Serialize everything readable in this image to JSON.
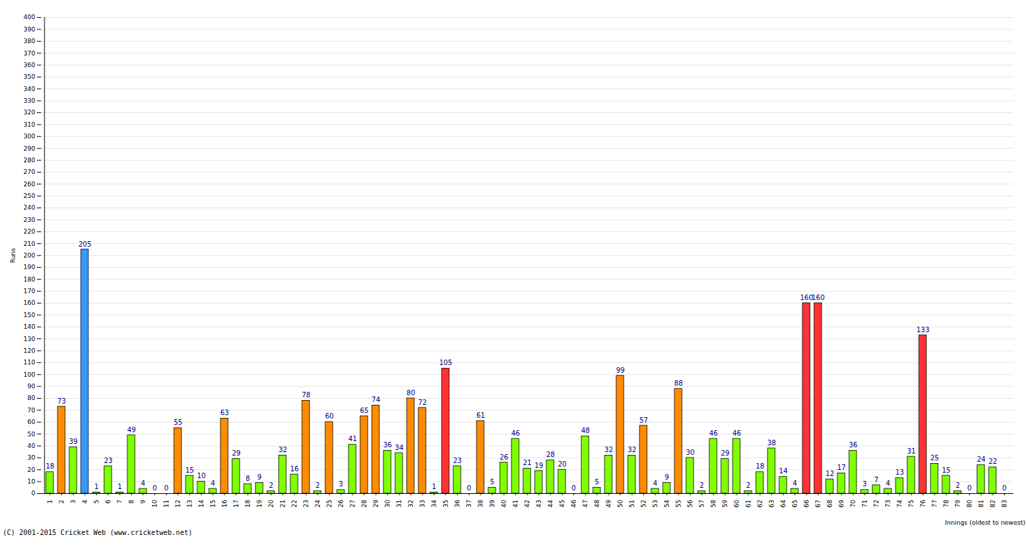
{
  "chart_data": {
    "type": "bar",
    "x_label": "Innings (oldest to newest)",
    "y_label": "Runs",
    "caption": "(C) 2001-2015 Cricket Web (www.cricketweb.net)",
    "categories": [
      "1",
      "2",
      "3",
      "4",
      "5",
      "6",
      "7",
      "8",
      "9",
      "10",
      "11",
      "12",
      "13",
      "14",
      "15",
      "16",
      "17",
      "18",
      "19",
      "20",
      "21",
      "22",
      "23",
      "24",
      "25",
      "26",
      "27",
      "28",
      "29",
      "30",
      "31",
      "32",
      "33",
      "34",
      "35",
      "36",
      "37",
      "38",
      "39",
      "40",
      "41",
      "42",
      "43",
      "44",
      "45",
      "46",
      "47",
      "48",
      "49",
      "50",
      "51",
      "52",
      "53",
      "54",
      "55",
      "56",
      "57",
      "58",
      "59",
      "60",
      "61",
      "62",
      "63",
      "64",
      "65",
      "66",
      "67",
      "68",
      "69",
      "70",
      "71",
      "72",
      "73",
      "74",
      "75",
      "76",
      "77",
      "78",
      "79",
      "80",
      "81",
      "82",
      "83"
    ],
    "values": [
      18,
      73,
      39,
      205,
      1,
      23,
      1,
      49,
      4,
      0,
      0,
      55,
      15,
      10,
      4,
      63,
      29,
      8,
      9,
      2,
      32,
      16,
      78,
      2,
      60,
      3,
      41,
      65,
      74,
      36,
      34,
      80,
      72,
      1,
      105,
      23,
      0,
      61,
      5,
      26,
      46,
      21,
      19,
      28,
      20,
      0,
      48,
      5,
      32,
      99,
      32,
      57,
      4,
      9,
      88,
      30,
      2,
      46,
      29,
      46,
      2,
      18,
      38,
      14,
      4,
      160,
      160,
      12,
      17,
      36,
      3,
      7,
      4,
      13,
      31,
      133,
      25,
      15,
      2,
      0,
      24,
      22,
      0
    ],
    "colors": [
      "#80ff00",
      "#ff8c00",
      "#80ff00",
      "#3399ff",
      "#80ff00",
      "#80ff00",
      "#80ff00",
      "#80ff00",
      "#80ff00",
      "#80ff00",
      "#80ff00",
      "#ff8c00",
      "#80ff00",
      "#80ff00",
      "#80ff00",
      "#ff8c00",
      "#80ff00",
      "#80ff00",
      "#80ff00",
      "#80ff00",
      "#80ff00",
      "#80ff00",
      "#ff8c00",
      "#80ff00",
      "#ff8c00",
      "#80ff00",
      "#80ff00",
      "#ff8c00",
      "#ff8c00",
      "#80ff00",
      "#80ff00",
      "#ff8c00",
      "#ff8c00",
      "#80ff00",
      "#ff3333",
      "#80ff00",
      "#80ff00",
      "#ff8c00",
      "#80ff00",
      "#80ff00",
      "#80ff00",
      "#80ff00",
      "#80ff00",
      "#80ff00",
      "#80ff00",
      "#80ff00",
      "#80ff00",
      "#80ff00",
      "#80ff00",
      "#ff8c00",
      "#80ff00",
      "#ff8c00",
      "#80ff00",
      "#80ff00",
      "#ff8c00",
      "#80ff00",
      "#80ff00",
      "#80ff00",
      "#80ff00",
      "#80ff00",
      "#80ff00",
      "#80ff00",
      "#80ff00",
      "#80ff00",
      "#80ff00",
      "#ff3333",
      "#ff3333",
      "#80ff00",
      "#80ff00",
      "#80ff00",
      "#80ff00",
      "#80ff00",
      "#80ff00",
      "#80ff00",
      "#80ff00",
      "#ff3333",
      "#80ff00",
      "#80ff00",
      "#80ff00",
      "#80ff00",
      "#80ff00",
      "#80ff00",
      "#80ff00"
    ],
    "ylim": [
      0,
      400
    ],
    "yticks": [
      0,
      10,
      20,
      30,
      40,
      50,
      60,
      70,
      80,
      90,
      100,
      110,
      120,
      130,
      140,
      150,
      160,
      170,
      180,
      190,
      200,
      210,
      220,
      230,
      240,
      250,
      260,
      270,
      280,
      290,
      300,
      310,
      320,
      330,
      340,
      350,
      360,
      370,
      380,
      390,
      400
    ],
    "grid": true,
    "data_labels": true
  }
}
